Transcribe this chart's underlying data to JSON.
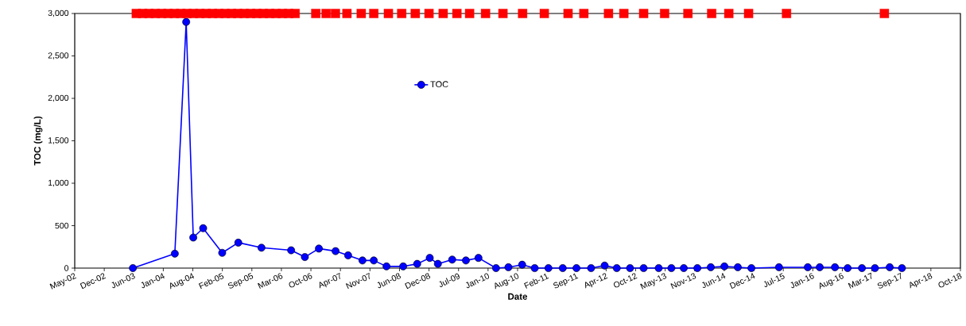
{
  "chart_data": {
    "type": "line",
    "xlabel": "Date",
    "ylabel": "TOC (mg/L)",
    "xlim": [
      "2002-05-24",
      "2018-10-27"
    ],
    "ylim": [
      0,
      3000
    ],
    "xticks": [
      {
        "value": "2002-05-24",
        "label": "May-02"
      },
      {
        "value": "2002-12-10",
        "label": "Dec-02"
      },
      {
        "value": "2003-06-28",
        "label": "Jun-03"
      },
      {
        "value": "2004-01-14",
        "label": "Jan-04"
      },
      {
        "value": "2004-08-01",
        "label": "Aug-04"
      },
      {
        "value": "2005-02-17",
        "label": "Feb-05"
      },
      {
        "value": "2005-09-05",
        "label": "Sep-05"
      },
      {
        "value": "2006-03-24",
        "label": "Mar-06"
      },
      {
        "value": "2006-10-10",
        "label": "Oct-06"
      },
      {
        "value": "2007-04-28",
        "label": "Apr-07"
      },
      {
        "value": "2007-11-14",
        "label": "Nov-07"
      },
      {
        "value": "2008-06-01",
        "label": "Jun-08"
      },
      {
        "value": "2008-12-18",
        "label": "Dec-08"
      },
      {
        "value": "2009-07-06",
        "label": "Jul-09"
      },
      {
        "value": "2010-01-22",
        "label": "Jan-10"
      },
      {
        "value": "2010-08-10",
        "label": "Aug-10"
      },
      {
        "value": "2011-02-26",
        "label": "Feb-11"
      },
      {
        "value": "2011-09-14",
        "label": "Sep-11"
      },
      {
        "value": "2012-04-01",
        "label": "Apr-12"
      },
      {
        "value": "2012-10-18",
        "label": "Oct-12"
      },
      {
        "value": "2013-05-06",
        "label": "May-13"
      },
      {
        "value": "2013-11-22",
        "label": "Nov-13"
      },
      {
        "value": "2014-06-10",
        "label": "Jun-14"
      },
      {
        "value": "2014-12-27",
        "label": "Dec-14"
      },
      {
        "value": "2015-07-15",
        "label": "Jul-15"
      },
      {
        "value": "2016-01-31",
        "label": "Jan-16"
      },
      {
        "value": "2016-08-18",
        "label": "Aug-16"
      },
      {
        "value": "2017-03-06",
        "label": "Mar-17"
      },
      {
        "value": "2017-09-22",
        "label": "Sep-17"
      },
      {
        "value": "2018-04-10",
        "label": "Apr-18"
      },
      {
        "value": "2018-10-27",
        "label": "Oct-18"
      }
    ],
    "yticks": [
      0,
      {
        "value": 500,
        "label": "500"
      },
      {
        "value": 1000,
        "label": "1,000"
      },
      {
        "value": 1500,
        "label": "1,500"
      },
      {
        "value": 2000,
        "label": "2,000"
      },
      {
        "value": 2500,
        "label": "2,500"
      },
      {
        "value": 3000,
        "label": "3,000"
      }
    ],
    "legend": "top",
    "series": [
      {
        "name": "TOC",
        "marker": "circle",
        "color": "#0000ff",
        "x": [
          "2003-06-22",
          "2004-04-01",
          "2004-06-17",
          "2004-08-04",
          "2004-10-10",
          "2005-02-16",
          "2005-06-05",
          "2005-11-09",
          "2006-05-29",
          "2006-08-30",
          "2006-12-03",
          "2007-03-26",
          "2007-06-19",
          "2007-09-24",
          "2007-12-10",
          "2008-03-05",
          "2008-06-26",
          "2008-09-29",
          "2008-12-23",
          "2009-02-16",
          "2009-05-24",
          "2009-08-25",
          "2009-11-18",
          "2010-03-17",
          "2010-06-09",
          "2010-09-10",
          "2010-12-04",
          "2011-03-07",
          "2011-06-12",
          "2011-09-13",
          "2011-12-21",
          "2012-03-22",
          "2012-06-12",
          "2012-09-10",
          "2012-12-11",
          "2013-03-23",
          "2013-06-17",
          "2013-09-09",
          "2013-12-10",
          "2014-03-11",
          "2014-06-11",
          "2014-09-10",
          "2014-12-11",
          "2015-06-16",
          "2015-12-28",
          "2016-03-18",
          "2016-06-29",
          "2016-09-23",
          "2016-12-29",
          "2017-03-27",
          "2017-07-05",
          "2017-09-26"
        ],
        "values": [
          0,
          170,
          2900,
          360,
          470,
          180,
          300,
          240,
          210,
          130,
          230,
          200,
          150,
          90,
          90,
          20,
          20,
          50,
          120,
          50,
          100,
          90,
          120,
          0,
          10,
          40,
          0,
          0,
          0,
          0,
          0,
          30,
          0,
          0,
          0,
          0,
          0,
          0,
          0,
          10,
          20,
          10,
          0,
          10,
          10,
          10,
          10,
          0,
          0,
          0,
          10,
          0
        ]
      },
      {
        "type": "scatter",
        "marker": "square",
        "color": "#ff0000",
        "x": [
          "2003-07-15",
          "2003-08-27",
          "2003-10-09",
          "2003-11-21",
          "2004-01-03",
          "2004-02-15",
          "2004-03-29",
          "2004-05-11",
          "2004-06-23",
          "2004-08-05",
          "2004-09-17",
          "2004-10-30",
          "2004-12-12",
          "2005-01-24",
          "2005-03-08",
          "2005-04-20",
          "2005-06-02",
          "2005-07-15",
          "2005-08-27",
          "2005-10-09",
          "2005-11-21",
          "2006-01-03",
          "2006-02-15",
          "2006-03-30",
          "2006-05-12",
          "2006-06-25",
          "2006-11-12",
          "2007-01-21",
          "2007-03-25",
          "2007-06-11",
          "2007-09-16",
          "2007-12-10",
          "2008-03-18",
          "2008-06-16",
          "2008-09-16",
          "2008-12-18",
          "2009-03-24",
          "2009-06-25",
          "2009-09-19",
          "2010-01-05",
          "2010-05-03",
          "2010-09-13",
          "2011-02-07",
          "2011-07-18",
          "2011-11-02",
          "2012-04-17",
          "2012-07-30",
          "2012-12-11",
          "2013-05-02",
          "2013-10-07",
          "2014-03-17",
          "2014-07-11",
          "2014-11-22",
          "2015-08-06",
          "2017-05-30"
        ],
        "values": [
          3000,
          3000,
          3000,
          3000,
          3000,
          3000,
          3000,
          3000,
          3000,
          3000,
          3000,
          3000,
          3000,
          3000,
          3000,
          3000,
          3000,
          3000,
          3000,
          3000,
          3000,
          3000,
          3000,
          3000,
          3000,
          3000,
          3000,
          3000,
          3000,
          3000,
          3000,
          3000,
          3000,
          3000,
          3000,
          3000,
          3000,
          3000,
          3000,
          3000,
          3000,
          3000,
          3000,
          3000,
          3000,
          3000,
          3000,
          3000,
          3000,
          3000,
          3000,
          3000,
          3000,
          3000,
          3000
        ]
      }
    ]
  }
}
